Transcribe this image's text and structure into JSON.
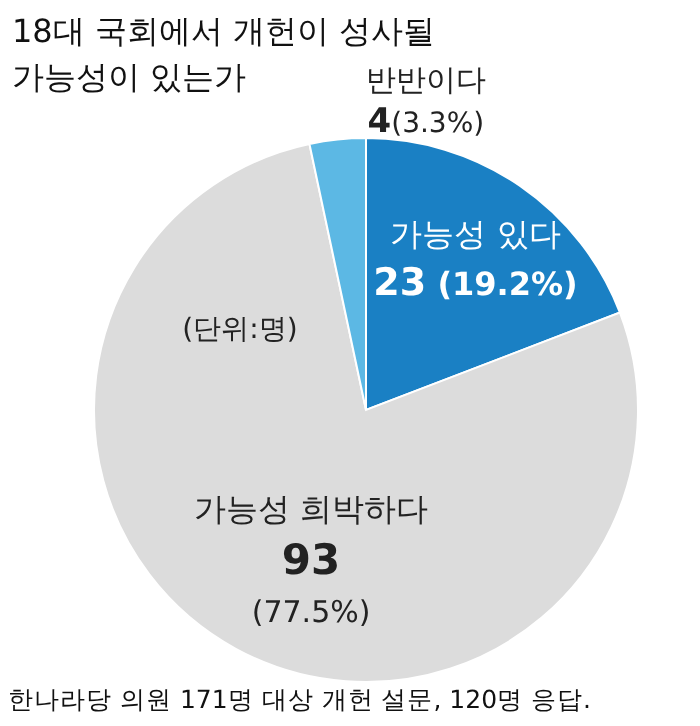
{
  "chart_data": {
    "type": "pie",
    "title": "18대 국회에서 개헌이 성사될 가능성이 있는가",
    "categories": [
      "가능성 있다",
      "가능성 희박하다",
      "반반이다"
    ],
    "values": [
      23,
      93,
      4
    ],
    "value_labels": [
      "23 (19.2%)",
      "93 (77.5%)",
      "4(3.3%)"
    ],
    "colors": [
      "#1a80c4",
      "#dcdcdc",
      "#5cb8e4"
    ],
    "annotations": [
      "(단위:명)",
      "한나라당 의원 171명 대상 개헌 설문, 120명 응답."
    ]
  }
}
